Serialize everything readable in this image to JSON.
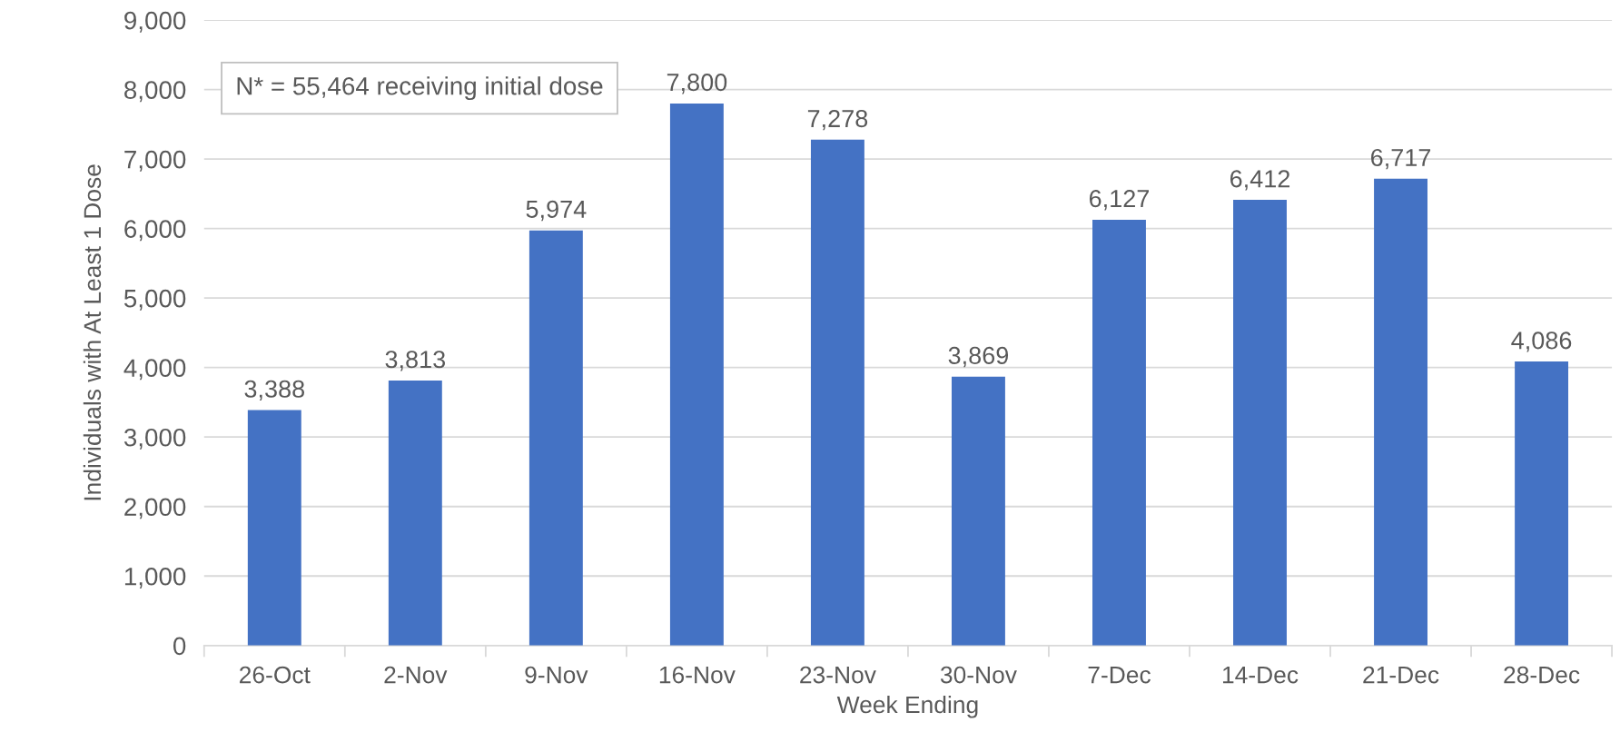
{
  "chart_data": {
    "type": "bar",
    "xlabel": "Week Ending",
    "ylabel": "Individuals with At Least 1 Dose",
    "categories": [
      "26-Oct",
      "2-Nov",
      "9-Nov",
      "16-Nov",
      "23-Nov",
      "30-Nov",
      "7-Dec",
      "14-Dec",
      "21-Dec",
      "28-Dec"
    ],
    "values": [
      3388,
      3813,
      5974,
      7800,
      7278,
      3869,
      6127,
      6412,
      6717,
      4086
    ],
    "value_labels": [
      "3,388",
      "3,813",
      "5,974",
      "7,800",
      "7,278",
      "3,869",
      "6,127",
      "6,412",
      "6,717",
      "4,086"
    ],
    "color": "#4472c4",
    "ylim": [
      0,
      9000
    ],
    "yticks": [
      0,
      {
        "value": 1000,
        "label": "1,000"
      },
      {
        "value": 2000,
        "label": "2,000"
      },
      {
        "value": 3000,
        "label": "3,000"
      },
      {
        "value": 4000,
        "label": "4,000"
      },
      {
        "value": 5000,
        "label": "5,000"
      },
      {
        "value": 6000,
        "label": "6,000"
      },
      {
        "value": 7000,
        "label": "7,000"
      },
      {
        "value": 8000,
        "label": "8,000"
      },
      {
        "value": 9000,
        "label": "9,000"
      }
    ],
    "grid": "y",
    "annotations": [
      "N* = 55,464 receiving initial dose"
    ]
  }
}
